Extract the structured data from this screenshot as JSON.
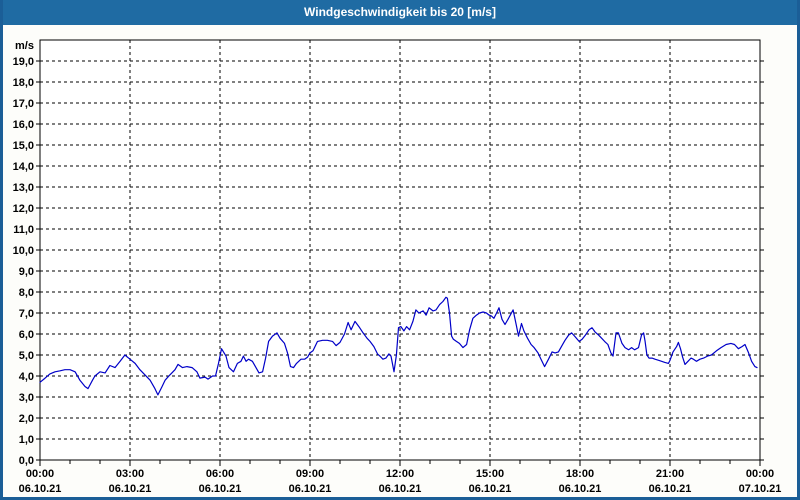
{
  "title": "Windgeschwindigkeit bis 20 [m/s]",
  "colors": {
    "titlebar_bg": "#1f6ba3",
    "window_border": "#1b5e97",
    "page_bg": "#fdfdfa",
    "plot_bg": "#ffffff",
    "grid": "#000000",
    "axis": "#000000",
    "text": "#000000",
    "line": "#0000c8"
  },
  "chart_data": {
    "type": "line",
    "title": "Windgeschwindigkeit bis 20 [m/s]",
    "unit_label": "m/s",
    "ylim": [
      0,
      20
    ],
    "ytick_step": 1.0,
    "ytick_labels": [
      "0,0",
      "1,0",
      "2,0",
      "3,0",
      "4,0",
      "5,0",
      "6,0",
      "7,0",
      "8,0",
      "9,0",
      "10,0",
      "11,0",
      "12,0",
      "13,0",
      "14,0",
      "15,0",
      "16,0",
      "17,0",
      "18,0",
      "19,0"
    ],
    "xlim_hours": [
      0,
      24
    ],
    "minor_xtick_every_hours": 1,
    "major_xtick_every_hours": 3,
    "grid": "dashed",
    "legend": "none",
    "xticks": [
      {
        "hour": 0,
        "time": "00:00",
        "date": "06.10.21"
      },
      {
        "hour": 3,
        "time": "03:00",
        "date": "06.10.21"
      },
      {
        "hour": 6,
        "time": "06:00",
        "date": "06.10.21"
      },
      {
        "hour": 9,
        "time": "09:00",
        "date": "06.10.21"
      },
      {
        "hour": 12,
        "time": "12:00",
        "date": "06.10.21"
      },
      {
        "hour": 15,
        "time": "15:00",
        "date": "06.10.21"
      },
      {
        "hour": 18,
        "time": "18:00",
        "date": "06.10.21"
      },
      {
        "hour": 21,
        "time": "21:00",
        "date": "06.10.21"
      },
      {
        "hour": 24,
        "time": "00:00",
        "date": "07.10.21"
      }
    ],
    "series": [
      {
        "name": "Windgeschwindigkeit",
        "color": "#0000c8",
        "x_hours": [
          0.0,
          0.17,
          0.33,
          0.5,
          0.67,
          0.83,
          1.0,
          1.17,
          1.33,
          1.5,
          1.6,
          1.75,
          1.83,
          2.0,
          2.17,
          2.33,
          2.5,
          2.67,
          2.83,
          3.0,
          3.17,
          3.33,
          3.5,
          3.67,
          3.83,
          3.93,
          4.07,
          4.17,
          4.33,
          4.5,
          4.6,
          4.75,
          4.9,
          5.07,
          5.23,
          5.33,
          5.5,
          5.6,
          5.75,
          5.85,
          5.95,
          6.05,
          6.2,
          6.3,
          6.45,
          6.58,
          6.7,
          6.78,
          6.87,
          6.95,
          7.08,
          7.18,
          7.3,
          7.42,
          7.52,
          7.62,
          7.75,
          7.9,
          8.0,
          8.15,
          8.25,
          8.35,
          8.45,
          8.55,
          8.7,
          8.82,
          8.92,
          9.0,
          9.1,
          9.25,
          9.42,
          9.58,
          9.75,
          9.87,
          10.0,
          10.15,
          10.27,
          10.37,
          10.5,
          10.63,
          10.77,
          10.9,
          11.0,
          11.13,
          11.25,
          11.33,
          11.43,
          11.53,
          11.63,
          11.7,
          11.8,
          11.88,
          11.95,
          12.03,
          12.13,
          12.22,
          12.32,
          12.43,
          12.53,
          12.63,
          12.77,
          12.87,
          12.97,
          13.1,
          13.2,
          13.32,
          13.43,
          13.53,
          13.58,
          13.65,
          13.72,
          13.78,
          13.88,
          13.98,
          14.1,
          14.22,
          14.32,
          14.43,
          14.55,
          14.65,
          14.77,
          14.88,
          14.97,
          15.05,
          15.13,
          15.22,
          15.3,
          15.4,
          15.5,
          15.6,
          15.77,
          15.88,
          15.95,
          16.05,
          16.13,
          16.25,
          16.37,
          16.47,
          16.6,
          16.7,
          16.82,
          16.95,
          17.07,
          17.17,
          17.28,
          17.4,
          17.5,
          17.62,
          17.72,
          17.82,
          17.97,
          18.07,
          18.18,
          18.3,
          18.4,
          18.5,
          18.62,
          18.72,
          18.82,
          18.93,
          19.03,
          19.1,
          19.2,
          19.28,
          19.4,
          19.5,
          19.62,
          19.72,
          19.82,
          19.95,
          20.05,
          20.12,
          20.17,
          20.23,
          20.3,
          20.4,
          20.5,
          20.62,
          20.72,
          20.83,
          20.95,
          21.0,
          21.1,
          21.22,
          21.28,
          21.35,
          21.42,
          21.5,
          21.6,
          21.7,
          21.78,
          21.88,
          22.0,
          22.12,
          22.25,
          22.38,
          22.55,
          22.7,
          22.87,
          23.03,
          23.15,
          23.28,
          23.4,
          23.5,
          23.62,
          23.72,
          23.83,
          23.9
        ],
        "values": [
          3.7,
          3.9,
          4.1,
          4.2,
          4.25,
          4.3,
          4.3,
          4.2,
          3.8,
          3.5,
          3.4,
          3.8,
          4.0,
          4.2,
          4.15,
          4.5,
          4.4,
          4.7,
          5.0,
          4.8,
          4.6,
          4.3,
          4.05,
          3.8,
          3.4,
          3.1,
          3.5,
          3.8,
          4.05,
          4.3,
          4.55,
          4.4,
          4.45,
          4.4,
          4.2,
          3.9,
          3.95,
          3.85,
          4.0,
          4.0,
          4.6,
          5.3,
          4.95,
          4.4,
          4.2,
          4.6,
          4.7,
          4.95,
          4.7,
          4.8,
          4.7,
          4.45,
          4.15,
          4.2,
          4.85,
          5.65,
          5.9,
          6.05,
          5.8,
          5.55,
          5.1,
          4.45,
          4.4,
          4.6,
          4.8,
          4.8,
          4.9,
          5.1,
          5.2,
          5.65,
          5.7,
          5.7,
          5.65,
          5.45,
          5.6,
          6.0,
          6.55,
          6.2,
          6.6,
          6.35,
          6.05,
          5.8,
          5.65,
          5.4,
          5.05,
          4.95,
          4.8,
          4.85,
          5.05,
          4.95,
          4.2,
          5.0,
          6.3,
          6.35,
          6.15,
          6.35,
          6.2,
          6.6,
          7.15,
          7.0,
          7.1,
          6.9,
          7.25,
          7.1,
          7.15,
          7.4,
          7.55,
          7.75,
          7.7,
          7.0,
          5.9,
          5.75,
          5.65,
          5.55,
          5.35,
          5.5,
          6.2,
          6.75,
          6.9,
          7.0,
          7.05,
          7.0,
          6.9,
          6.85,
          6.75,
          7.0,
          7.25,
          6.7,
          6.45,
          6.7,
          7.15,
          6.4,
          5.9,
          6.5,
          6.15,
          5.8,
          5.5,
          5.35,
          5.1,
          4.8,
          4.45,
          4.8,
          5.15,
          5.1,
          5.15,
          5.45,
          5.7,
          5.95,
          6.05,
          5.9,
          5.65,
          5.75,
          5.95,
          6.2,
          6.3,
          6.1,
          5.95,
          5.8,
          5.65,
          5.5,
          5.1,
          4.95,
          6.05,
          6.05,
          5.55,
          5.35,
          5.25,
          5.35,
          5.25,
          5.35,
          5.95,
          6.05,
          5.65,
          5.0,
          4.85,
          4.85,
          4.8,
          4.75,
          4.7,
          4.65,
          4.6,
          4.75,
          5.15,
          5.4,
          5.6,
          5.3,
          4.9,
          4.55,
          4.7,
          4.85,
          4.8,
          4.7,
          4.8,
          4.85,
          4.95,
          5.0,
          5.2,
          5.35,
          5.5,
          5.55,
          5.5,
          5.3,
          5.4,
          5.5,
          5.1,
          4.7,
          4.45,
          4.4
        ]
      }
    ]
  }
}
